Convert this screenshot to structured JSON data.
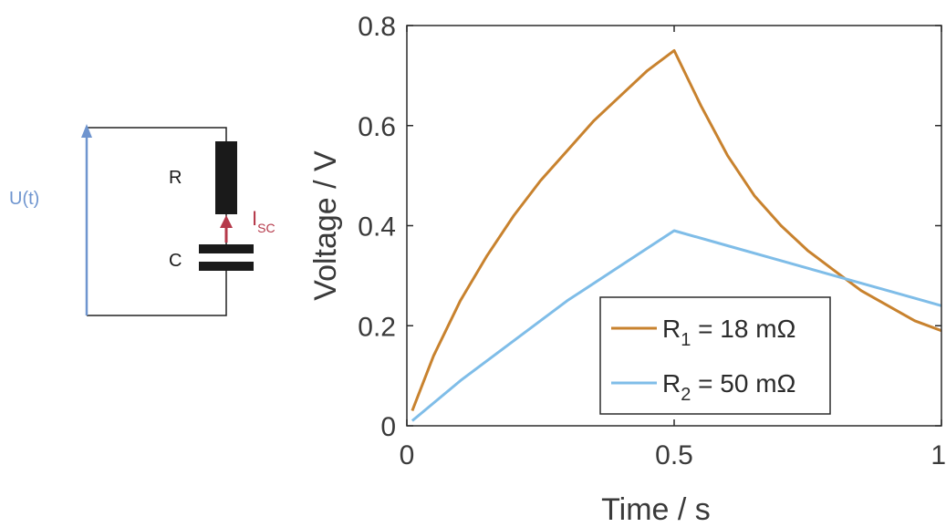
{
  "circuit": {
    "source_label": "U(t)",
    "resistor_label": "R",
    "capacitor_label": "C",
    "current_label_main": "I",
    "current_label_sub": "SC",
    "colors": {
      "wire": "#222222",
      "source": "#6f95cf",
      "current": "#b5394a",
      "component": "#1a1a1a"
    }
  },
  "chart_data": {
    "type": "line",
    "title": "",
    "xlabel": "Time / s",
    "ylabel": "Voltage / V",
    "xlim": [
      0,
      1
    ],
    "ylim": [
      0,
      0.8
    ],
    "xticks": [
      0,
      0.5,
      1
    ],
    "xtick_labels": [
      "0",
      "0.5",
      "1"
    ],
    "yticks": [
      0,
      0.2,
      0.4,
      0.6,
      0.8
    ],
    "ytick_labels": [
      "0",
      "0.2",
      "0.4",
      "0.6",
      "0.8"
    ],
    "grid": false,
    "legend_position": "bottom-right",
    "series": [
      {
        "legend_main": "R",
        "legend_sub": "1",
        "legend_rest": " = 18 mΩ",
        "color": "#c8822e",
        "x": [
          0.01,
          0.05,
          0.1,
          0.15,
          0.2,
          0.25,
          0.3,
          0.35,
          0.4,
          0.45,
          0.5,
          0.55,
          0.6,
          0.65,
          0.7,
          0.75,
          0.8,
          0.85,
          0.9,
          0.95,
          1.0
        ],
        "y": [
          0.03,
          0.14,
          0.25,
          0.34,
          0.42,
          0.49,
          0.55,
          0.61,
          0.66,
          0.71,
          0.75,
          0.64,
          0.54,
          0.46,
          0.4,
          0.35,
          0.31,
          0.27,
          0.24,
          0.21,
          0.19
        ]
      },
      {
        "legend_main": "R",
        "legend_sub": "2",
        "legend_rest": " = 50 mΩ",
        "color": "#7fbde8",
        "x": [
          0.01,
          0.1,
          0.2,
          0.3,
          0.4,
          0.5,
          0.6,
          0.7,
          0.8,
          0.9,
          1.0
        ],
        "y": [
          0.01,
          0.09,
          0.17,
          0.25,
          0.32,
          0.39,
          0.36,
          0.33,
          0.3,
          0.27,
          0.24
        ]
      }
    ]
  }
}
